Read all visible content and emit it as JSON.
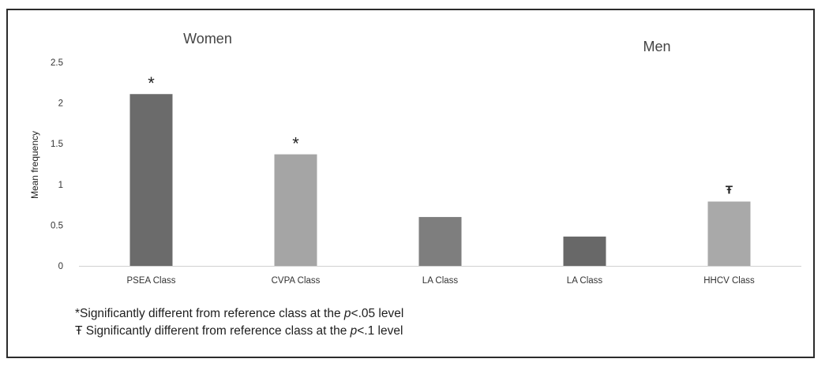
{
  "chart_data": {
    "type": "bar",
    "ylabel": "Mean frequency",
    "ylim": [
      0,
      2.5
    ],
    "yticks": [
      "0",
      "0.5",
      "1",
      "1.5",
      "2",
      "2.5"
    ],
    "grid": false,
    "groups": [
      "Women",
      "Men"
    ],
    "categories": [
      "PSEA Class",
      "CVPA Class",
      "LA Class",
      "LA Class",
      "HHCV Class"
    ],
    "values": [
      2.11,
      1.37,
      0.6,
      0.36,
      0.79
    ],
    "group_of_category": [
      "Women",
      "Women",
      "Women",
      "Men",
      "Men"
    ],
    "markers": [
      "*",
      "*",
      "",
      "",
      "Ŧ"
    ],
    "colors": [
      "#6b6b6b",
      "#a5a5a5",
      "#7e7e7e",
      "#686868",
      "#a9a9a9"
    ]
  },
  "footnotes": {
    "line1_prefix": "*Significantly different from reference class at the ",
    "line1_p": "p",
    "line1_suffix": "<.05 level",
    "line2_prefix": "Ŧ Significantly different from  reference class at the ",
    "line2_p": "p",
    "line2_suffix": "<.1 level"
  }
}
